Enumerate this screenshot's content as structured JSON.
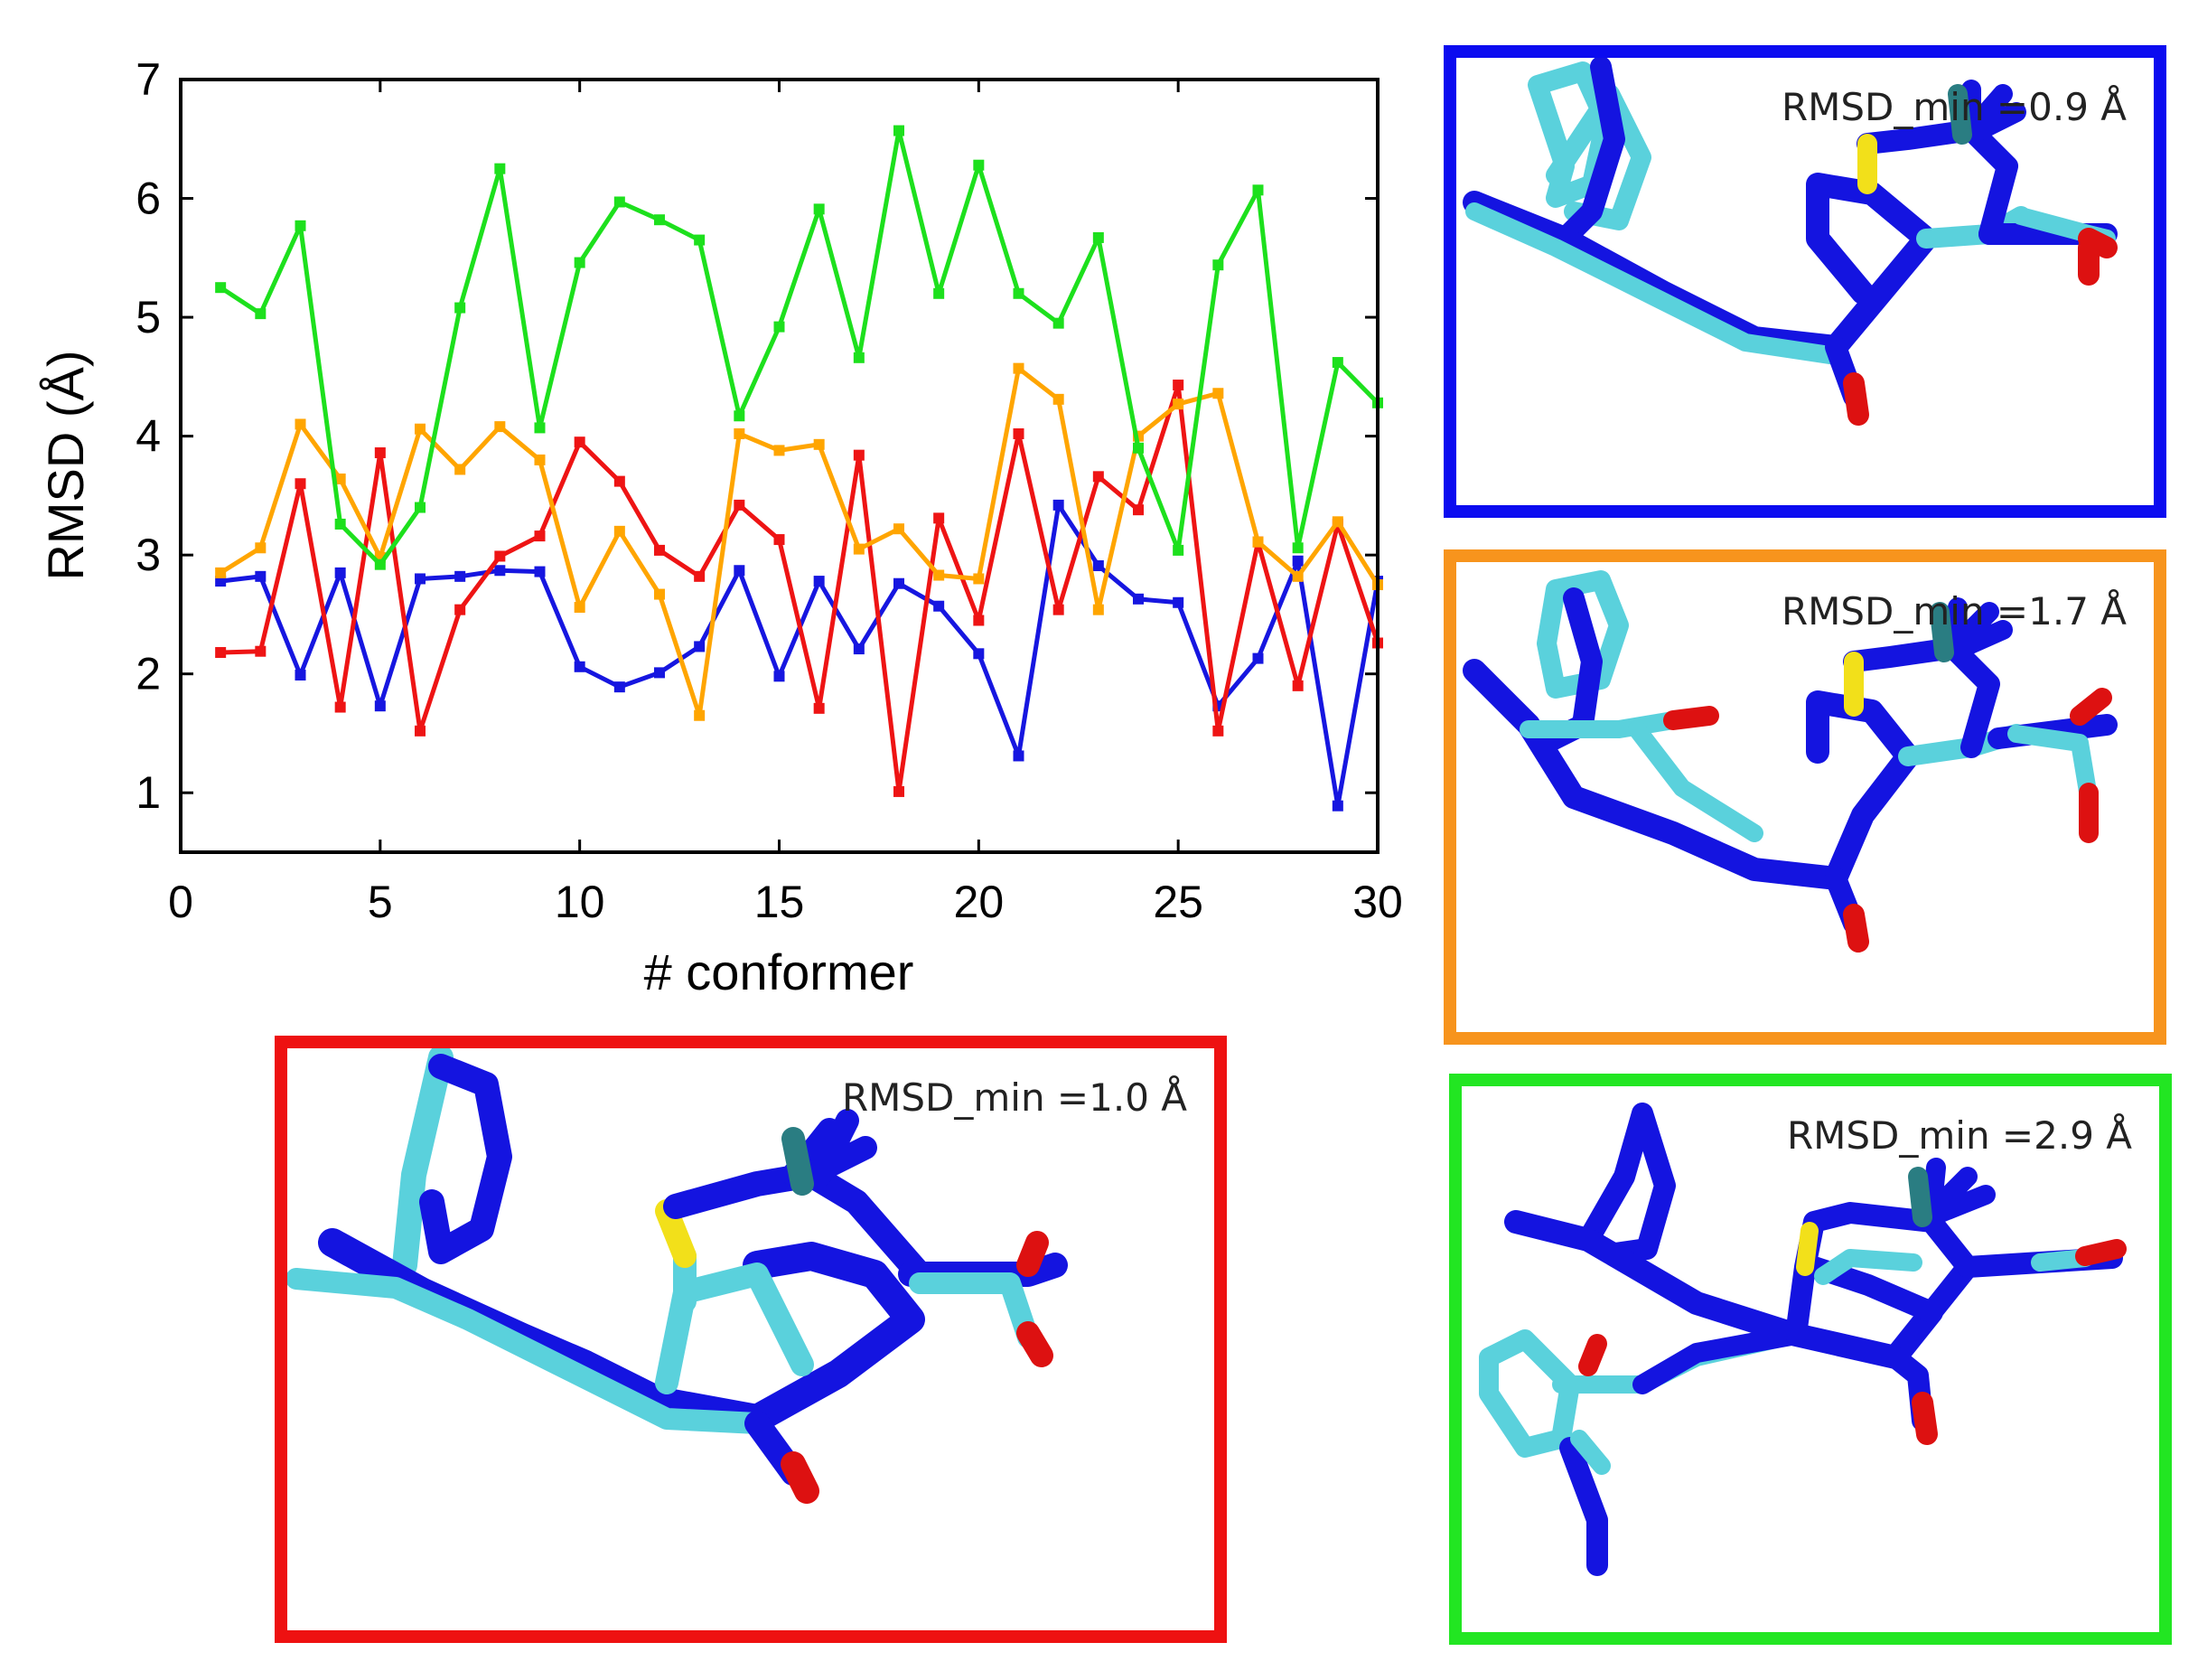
{
  "chart_data": {
    "type": "line",
    "xlabel": "# conformer",
    "ylabel": "RMSD (Å)",
    "xlim": [
      0,
      30
    ],
    "ylim": [
      0.5,
      7
    ],
    "xticks": [
      "0",
      "5",
      "10",
      "15",
      "20",
      "25",
      "30"
    ],
    "yticks": [
      "1",
      "2",
      "3",
      "4",
      "5",
      "6",
      "7"
    ],
    "grid": false,
    "legend": "none",
    "x": [
      1,
      2,
      3,
      4,
      5,
      6,
      7,
      8,
      9,
      10,
      11,
      12,
      13,
      14,
      15,
      16,
      17,
      18,
      19,
      20,
      21,
      22,
      23,
      24,
      25,
      26,
      27,
      28,
      29,
      30
    ],
    "series": [
      {
        "color": "#1616e0",
        "values": [
          2.78,
          2.82,
          1.99,
          2.85,
          1.73,
          2.8,
          2.82,
          2.87,
          2.86,
          2.06,
          1.89,
          2.01,
          2.23,
          2.87,
          1.98,
          2.78,
          2.21,
          2.76,
          2.57,
          2.17,
          1.31,
          3.42,
          2.91,
          2.63,
          2.6,
          1.73,
          2.13,
          2.95,
          0.89,
          2.78
        ]
      },
      {
        "color": "#ee1414",
        "values": [
          2.18,
          2.19,
          3.6,
          1.72,
          3.86,
          1.52,
          2.54,
          2.99,
          3.16,
          3.95,
          3.62,
          3.04,
          2.82,
          3.42,
          3.13,
          1.71,
          3.84,
          1.01,
          3.31,
          2.45,
          4.02,
          2.54,
          3.66,
          3.38,
          4.43,
          1.52,
          3.11,
          1.9,
          3.26,
          2.26
        ]
      },
      {
        "color": "#ffa500",
        "values": [
          2.85,
          3.06,
          4.1,
          3.64,
          2.98,
          4.06,
          3.72,
          4.08,
          3.8,
          2.56,
          3.2,
          2.67,
          1.65,
          4.02,
          3.88,
          3.93,
          3.05,
          3.22,
          2.83,
          2.8,
          4.57,
          4.31,
          2.54,
          4.0,
          4.27,
          4.36,
          3.11,
          2.82,
          3.28,
          2.75
        ]
      },
      {
        "color": "#1de01d",
        "values": [
          5.25,
          5.03,
          5.77,
          3.26,
          2.92,
          3.4,
          5.08,
          6.25,
          4.07,
          5.46,
          5.97,
          5.82,
          5.65,
          4.17,
          4.92,
          5.91,
          4.66,
          6.57,
          5.2,
          6.28,
          5.2,
          4.95,
          5.67,
          3.9,
          3.04,
          5.44,
          6.07,
          3.06,
          4.62,
          4.28
        ]
      }
    ]
  },
  "panels": [
    {
      "label": "RMSD_min =0.9 Å",
      "frame_color": "#0b0bf0"
    },
    {
      "label": "RMSD_min =1.7 Å",
      "frame_color": "#f7941d"
    },
    {
      "label": "RMSD_min =1.0 Å",
      "frame_color": "#ee1111"
    },
    {
      "label": "RMSD_min =2.9 Å",
      "frame_color": "#22e622"
    }
  ]
}
